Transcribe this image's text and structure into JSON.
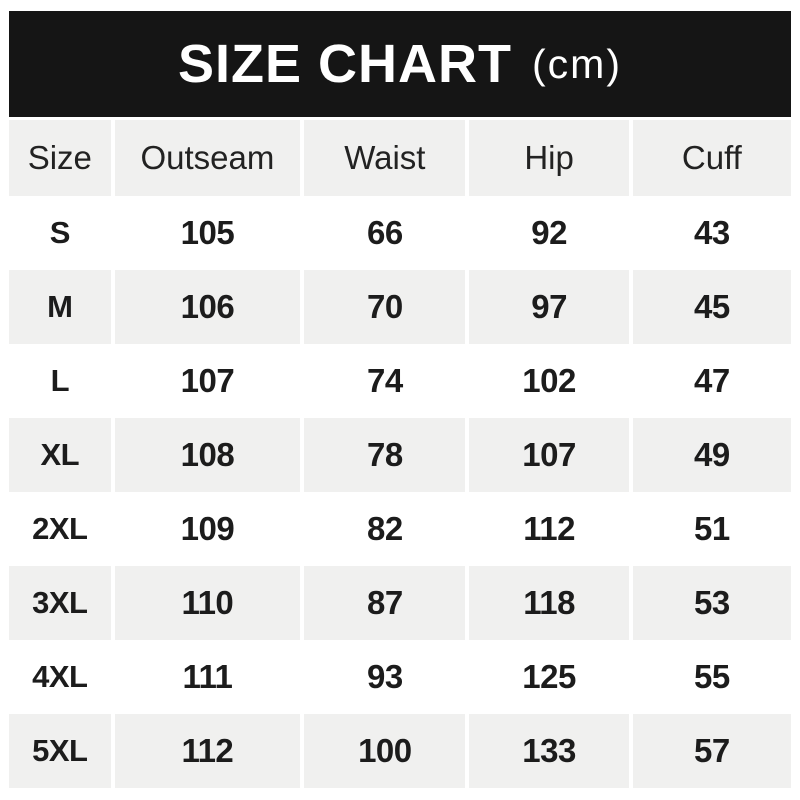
{
  "banner": {
    "title": "SIZE CHART",
    "unit": "(cm)"
  },
  "colors": {
    "banner_bg": "#151515",
    "banner_text": "#ffffff",
    "row_alt_bg": "#f0f0ef",
    "row_bg": "#ffffff",
    "text": "#1c1c1c"
  },
  "chart_data": {
    "type": "table",
    "title": "SIZE CHART (cm)",
    "unit": "cm",
    "columns": [
      "Size",
      "Outseam",
      "Waist",
      "Hip",
      "Cuff"
    ],
    "rows": [
      [
        "S",
        "105",
        "66",
        "92",
        "43"
      ],
      [
        "M",
        "106",
        "70",
        "97",
        "45"
      ],
      [
        "L",
        "107",
        "74",
        "102",
        "47"
      ],
      [
        "XL",
        "108",
        "78",
        "107",
        "49"
      ],
      [
        "2XL",
        "109",
        "82",
        "112",
        "51"
      ],
      [
        "3XL",
        "110",
        "87",
        "118",
        "53"
      ],
      [
        "4XL",
        "111",
        "93",
        "125",
        "55"
      ],
      [
        "5XL",
        "112",
        "100",
        "133",
        "57"
      ]
    ]
  }
}
